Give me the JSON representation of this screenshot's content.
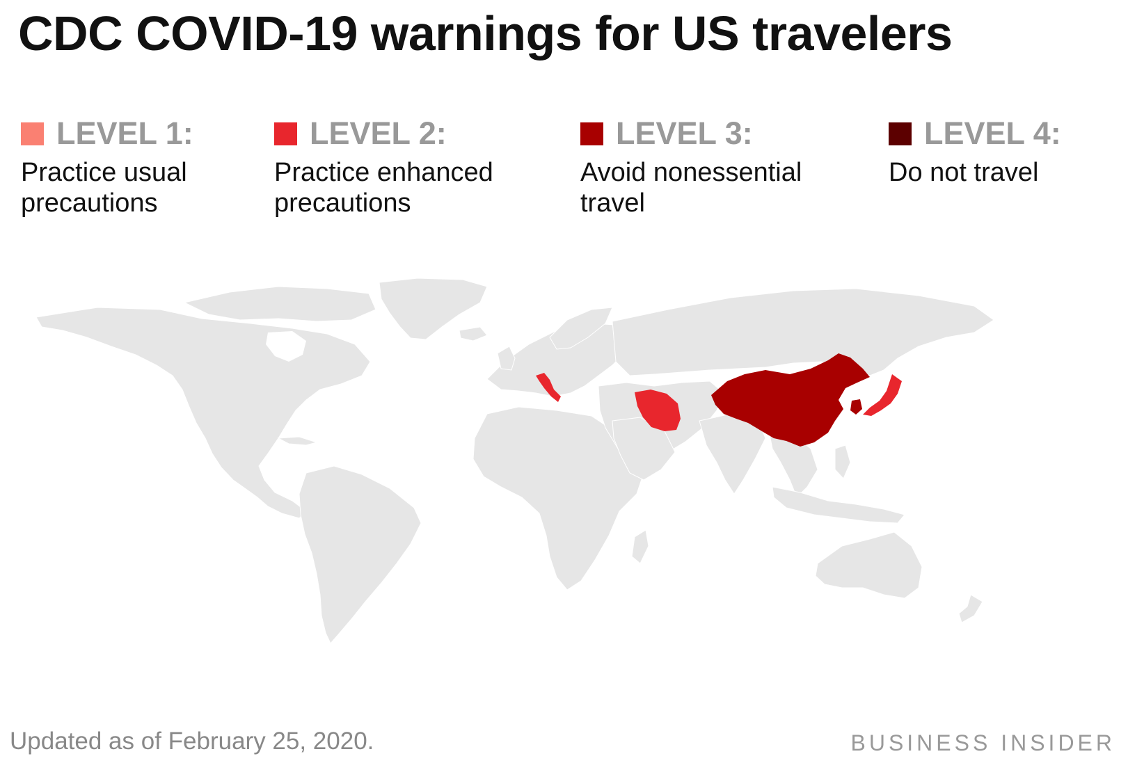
{
  "title": "CDC COVID-19 warnings for US travelers",
  "legend": [
    {
      "label": "LEVEL 1:",
      "description": "Practice usual\nprecautions",
      "color": "#FA8072"
    },
    {
      "label": "LEVEL 2:",
      "description": "Practice enhanced\nprecautions",
      "color": "#E8262D"
    },
    {
      "label": "LEVEL 3:",
      "description": "Avoid nonessential\ntravel",
      "color": "#A80000"
    },
    {
      "label": "LEVEL 4:",
      "description": "Do not travel",
      "color": "#5C0000"
    }
  ],
  "highlighted_countries": [
    {
      "country": "Italy",
      "level": 2
    },
    {
      "country": "Iran",
      "level": 2
    },
    {
      "country": "Japan",
      "level": 2
    },
    {
      "country": "South Korea",
      "level": 3
    },
    {
      "country": "China",
      "level": 3
    }
  ],
  "land_color": "#E6E6E6",
  "footer": {
    "note": "Updated as of February 25, 2020.",
    "brand": "BUSINESS INSIDER"
  }
}
